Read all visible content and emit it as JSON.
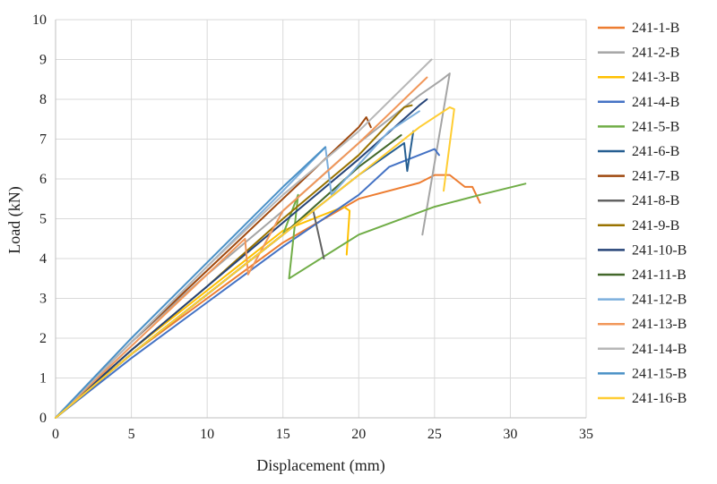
{
  "chart_data": {
    "type": "line",
    "title": "",
    "xlabel": "Displacement (mm)",
    "ylabel": "Load (kN)",
    "xlim": [
      0,
      35
    ],
    "ylim": [
      0,
      10
    ],
    "xticks": [
      0,
      5,
      10,
      15,
      20,
      25,
      30,
      35
    ],
    "yticks": [
      0,
      1,
      2,
      3,
      4,
      5,
      6,
      7,
      8,
      9,
      10
    ],
    "grid": true,
    "legend_position": "right",
    "series": [
      {
        "name": "241-1-B",
        "color": "#ED7D31",
        "x": [
          0,
          5,
          10,
          15,
          20,
          24,
          25,
          26,
          27,
          27.5,
          28
        ],
        "y": [
          0,
          1.6,
          3.0,
          4.4,
          5.5,
          5.9,
          6.1,
          6.1,
          5.8,
          5.8,
          5.4
        ]
      },
      {
        "name": "241-2-B",
        "color": "#A5A5A5",
        "x": [
          0,
          5,
          10,
          15,
          20,
          24,
          25.5,
          26,
          24.2
        ],
        "y": [
          0,
          1.9,
          3.6,
          5.2,
          6.9,
          8.1,
          8.5,
          8.65,
          4.6
        ]
      },
      {
        "name": "241-3-B",
        "color": "#FFC000",
        "x": [
          0,
          5,
          10,
          15,
          19,
          19.4,
          19.2
        ],
        "y": [
          0,
          1.7,
          3.2,
          4.7,
          5.3,
          5.2,
          4.1
        ]
      },
      {
        "name": "241-4-B",
        "color": "#4472C4",
        "x": [
          0,
          5,
          10,
          15,
          20,
          22,
          25,
          25.3
        ],
        "y": [
          0,
          1.5,
          2.9,
          4.3,
          5.6,
          6.3,
          6.75,
          6.6
        ]
      },
      {
        "name": "241-5-B",
        "color": "#70AD47",
        "x": [
          0,
          5,
          10,
          15,
          16,
          15.4,
          20,
          25,
          28,
          31
        ],
        "y": [
          0,
          1.6,
          3.1,
          4.6,
          5.6,
          3.5,
          4.6,
          5.3,
          5.6,
          5.88
        ]
      },
      {
        "name": "241-6-B",
        "color": "#255E91",
        "x": [
          0,
          5,
          10,
          15,
          20,
          23,
          23.2,
          23.6
        ],
        "y": [
          0,
          1.6,
          3.1,
          4.6,
          6.1,
          6.9,
          6.2,
          7.2
        ]
      },
      {
        "name": "241-7-B",
        "color": "#9E480E",
        "x": [
          0,
          5,
          10,
          15,
          20,
          20.5,
          20.8
        ],
        "y": [
          0,
          1.9,
          3.7,
          5.5,
          7.3,
          7.55,
          7.3
        ]
      },
      {
        "name": "241-8-B",
        "color": "#636363",
        "x": [
          0,
          5,
          10,
          15,
          17,
          17.7
        ],
        "y": [
          0,
          1.6,
          3.1,
          4.6,
          5.2,
          4.0
        ]
      },
      {
        "name": "241-9-B",
        "color": "#997300",
        "x": [
          0,
          5,
          10,
          15,
          20,
          23,
          23.5
        ],
        "y": [
          0,
          1.7,
          3.3,
          5.0,
          6.6,
          7.8,
          7.85
        ]
      },
      {
        "name": "241-10-B",
        "color": "#264478",
        "x": [
          0,
          5,
          10,
          15,
          20,
          24,
          24.5
        ],
        "y": [
          0,
          1.7,
          3.3,
          4.9,
          6.5,
          7.85,
          8.0
        ]
      },
      {
        "name": "241-11-B",
        "color": "#43682B",
        "x": [
          0,
          5,
          10,
          15,
          20,
          22.8
        ],
        "y": [
          0,
          1.6,
          3.1,
          4.6,
          6.3,
          7.1
        ]
      },
      {
        "name": "241-12-B",
        "color": "#7CAFDD",
        "x": [
          0,
          5,
          10,
          15,
          17.8,
          18.2,
          22,
          24
        ],
        "y": [
          0,
          1.9,
          3.8,
          5.7,
          6.8,
          5.6,
          7.2,
          7.7
        ]
      },
      {
        "name": "241-13-B",
        "color": "#F1975A",
        "x": [
          0,
          5,
          10,
          12.5,
          12.7,
          15,
          20,
          24.5
        ],
        "y": [
          0,
          1.8,
          3.6,
          4.5,
          3.6,
          5.2,
          6.9,
          8.55
        ]
      },
      {
        "name": "241-14-B",
        "color": "#B7B7B7",
        "x": [
          0,
          5,
          10,
          15,
          20,
          24.8
        ],
        "y": [
          0,
          1.9,
          3.8,
          5.6,
          7.2,
          9.0
        ]
      },
      {
        "name": "241-15-B",
        "color": "#4A90C6",
        "x": [
          0,
          5,
          10,
          15,
          17.8
        ],
        "y": [
          0,
          2.0,
          3.9,
          5.8,
          6.8
        ]
      },
      {
        "name": "241-16-B",
        "color": "#FFCD33",
        "x": [
          0,
          5,
          10,
          15,
          20,
          24,
          26,
          26.3,
          25.6
        ],
        "y": [
          0,
          1.6,
          3.1,
          4.6,
          6.1,
          7.3,
          7.8,
          7.75,
          5.7
        ]
      }
    ]
  }
}
